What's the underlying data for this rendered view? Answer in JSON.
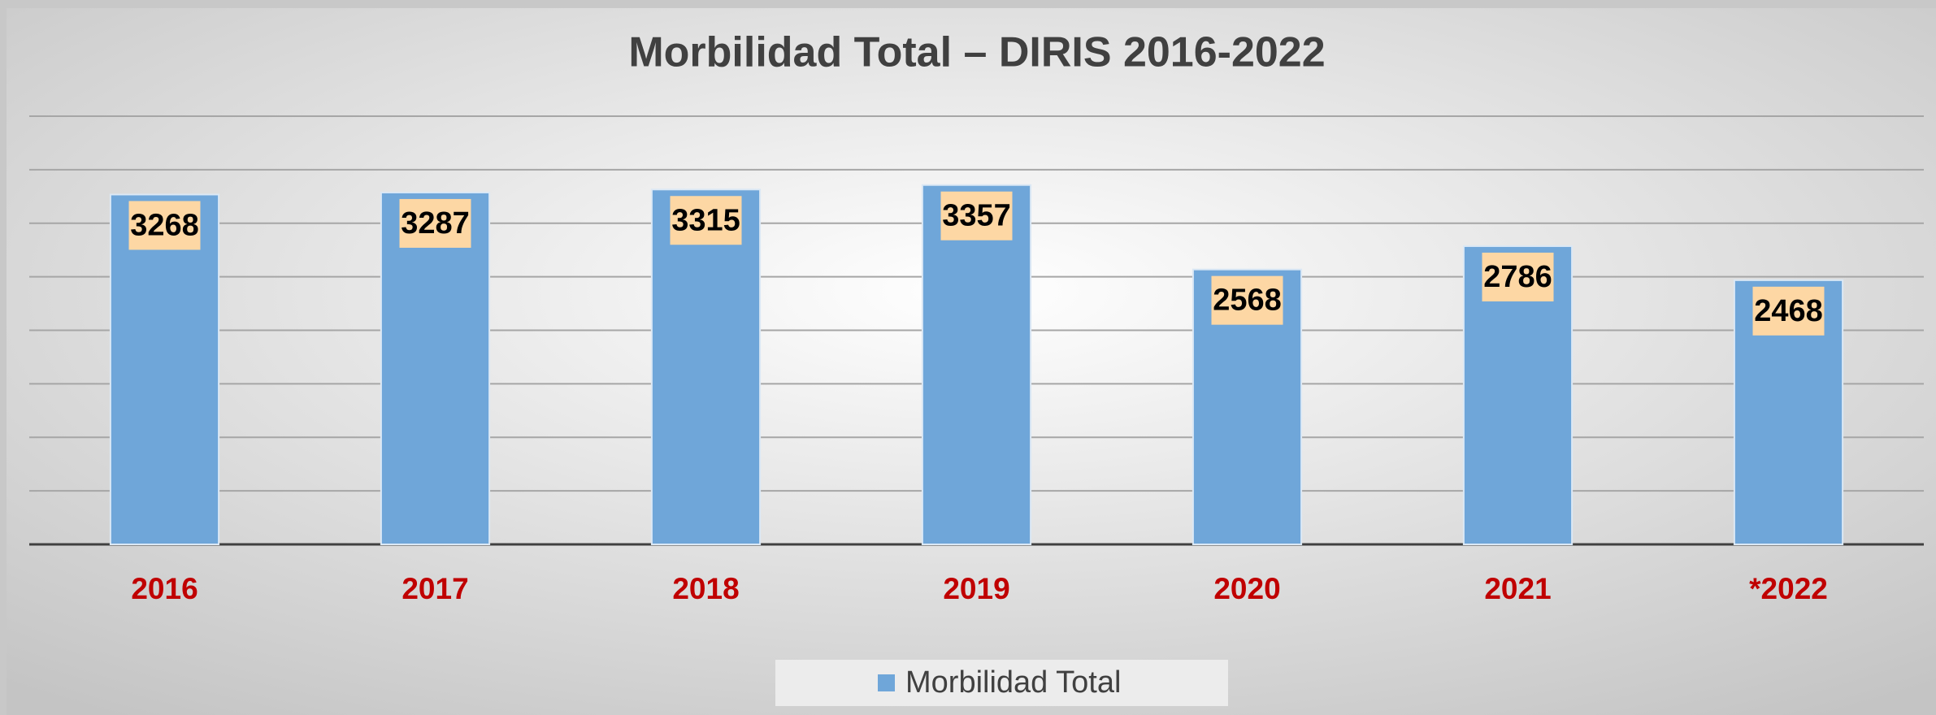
{
  "chart_data": {
    "type": "bar",
    "title": "Morbilidad Total – DIRIS 2016-2022",
    "categories": [
      "2016",
      "2017",
      "2018",
      "2019",
      "2020",
      "2021",
      "*2022"
    ],
    "series": [
      {
        "name": "Morbilidad Total",
        "color": "#6fa6d9",
        "values": [
          3268,
          3287,
          3315,
          3357,
          2568,
          2786,
          2468
        ]
      }
    ],
    "ylim": [
      0,
      4000
    ],
    "yticks": [
      0,
      500,
      1000,
      1500,
      2000,
      2500,
      3000,
      3500,
      4000
    ],
    "grid": true,
    "legend": "bottom"
  }
}
